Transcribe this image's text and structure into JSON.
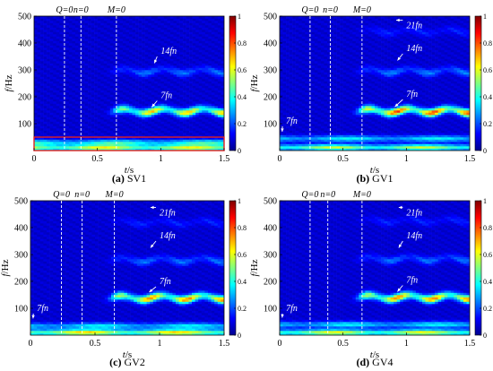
{
  "chart_data": [
    {
      "type": "heatmap",
      "caption_letter": "(a)",
      "caption_text": " SV1",
      "xlabel_main": "t",
      "xlabel_unit": "/s",
      "ylabel_main": "f",
      "ylabel_unit": "/Hz",
      "xlim": [
        0,
        1.5
      ],
      "ylim": [
        0,
        500
      ],
      "xticks": [
        "0",
        "0.5",
        "1",
        "1.5"
      ],
      "yticks": [
        "100",
        "200",
        "300",
        "400",
        "500"
      ],
      "colorbar": {
        "range": [
          0,
          1
        ],
        "ticks": [
          "0",
          "0.2",
          "0.4",
          "0.6",
          "0.8",
          "1"
        ]
      },
      "markers": [
        {
          "label": "Q=0",
          "t": 0.24
        },
        {
          "label": "n=0",
          "t": 0.37
        },
        {
          "label": "M=0",
          "t": 0.65
        }
      ],
      "annotations": [
        {
          "text": "14fn",
          "t": 1.0,
          "f": 360,
          "arrow_to": [
            0.95,
            325
          ]
        },
        {
          "text": "7fn",
          "t": 1.0,
          "f": 195,
          "arrow_to": [
            0.93,
            162
          ]
        }
      ],
      "highlight_box": {
        "t": [
          0,
          1.5
        ],
        "f": [
          0,
          50
        ]
      },
      "bands": [
        {
          "f": 148,
          "peak": 0.45
        },
        {
          "f": 296,
          "peak": 0.12
        },
        {
          "f": 30,
          "peak": 0.35
        },
        {
          "f": 10,
          "peak": 0.55
        }
      ]
    },
    {
      "type": "heatmap",
      "caption_letter": "(b)",
      "caption_text": " GV1",
      "xlabel_main": "t",
      "xlabel_unit": "/s",
      "ylabel_main": "f",
      "ylabel_unit": "/Hz",
      "xlim": [
        0,
        1.5
      ],
      "ylim": [
        0,
        500
      ],
      "xticks": [
        "0",
        "0.5",
        "1",
        "1.5"
      ],
      "yticks": [
        "100",
        "200",
        "300",
        "400",
        "500"
      ],
      "colorbar": {
        "range": [
          0,
          1
        ],
        "ticks": [
          "0",
          "0.2",
          "0.4",
          "0.6",
          "0.8",
          "1"
        ]
      },
      "markers": [
        {
          "label": "Q=0",
          "t": 0.24
        },
        {
          "label": "n=0",
          "t": 0.4
        },
        {
          "label": "M=0",
          "t": 0.65
        }
      ],
      "annotations": [
        {
          "text": "21fn",
          "t": 1.0,
          "f": 455,
          "arrow_to": [
            0.92,
            485
          ]
        },
        {
          "text": "14fn",
          "t": 1.0,
          "f": 370,
          "arrow_to": [
            0.93,
            335
          ]
        },
        {
          "text": "7fn",
          "t": 1.0,
          "f": 200,
          "arrow_to": [
            0.91,
            163
          ]
        },
        {
          "text": "7fn",
          "t": 0.05,
          "f": 100,
          "arrow_to": [
            0.02,
            70
          ]
        }
      ],
      "bands": [
        {
          "f": 148,
          "peak": 0.55
        },
        {
          "f": 296,
          "peak": 0.13
        },
        {
          "f": 444,
          "peak": 0.06
        },
        {
          "f": 45,
          "peak": 0.3
        },
        {
          "f": 12,
          "peak": 0.5
        }
      ]
    },
    {
      "type": "heatmap",
      "caption_letter": "(c)",
      "caption_text": " GV2",
      "xlabel_main": "t",
      "xlabel_unit": "/s",
      "ylabel_main": "f",
      "ylabel_unit": "/Hz",
      "xlim": [
        0,
        1.5
      ],
      "ylim": [
        0,
        500
      ],
      "xticks": [
        "0",
        "0.5",
        "1",
        "1.5"
      ],
      "yticks": [
        "100",
        "200",
        "300",
        "400",
        "500"
      ],
      "colorbar": {
        "range": [
          0,
          1
        ],
        "ticks": [
          "0",
          "0.2",
          "0.4",
          "0.6",
          "0.8",
          "1"
        ]
      },
      "markers": [
        {
          "label": "Q=0",
          "t": 0.24
        },
        {
          "label": "n=0",
          "t": 0.4
        },
        {
          "label": "M=0",
          "t": 0.65
        }
      ],
      "annotations": [
        {
          "text": "21fn",
          "t": 1.0,
          "f": 445,
          "arrow_to": [
            0.93,
            475
          ]
        },
        {
          "text": "14fn",
          "t": 1.0,
          "f": 360,
          "arrow_to": [
            0.93,
            325
          ]
        },
        {
          "text": "7fn",
          "t": 1.0,
          "f": 190,
          "arrow_to": [
            0.92,
            160
          ]
        },
        {
          "text": "7fn",
          "t": 0.05,
          "f": 90,
          "arrow_to": [
            0.02,
            62
          ]
        }
      ],
      "bands": [
        {
          "f": 140,
          "peak": 0.5
        },
        {
          "f": 280,
          "peak": 0.12
        },
        {
          "f": 420,
          "peak": 0.06
        },
        {
          "f": 35,
          "peak": 0.3
        },
        {
          "f": 10,
          "peak": 0.6
        }
      ]
    },
    {
      "type": "heatmap",
      "caption_letter": "(d)",
      "caption_text": " GV4",
      "xlabel_main": "t",
      "xlabel_unit": "/s",
      "ylabel_main": "f",
      "ylabel_unit": "/Hz",
      "xlim": [
        0,
        1.5
      ],
      "ylim": [
        0,
        500
      ],
      "xticks": [
        "0",
        "0.5",
        "1",
        "1.5"
      ],
      "yticks": [
        "100",
        "200",
        "300",
        "400",
        "500"
      ],
      "colorbar": {
        "range": [
          0,
          1
        ],
        "ticks": [
          "0",
          "0.2",
          "0.4",
          "0.6",
          "0.8",
          "1"
        ]
      },
      "markers": [
        {
          "label": "Q=0",
          "t": 0.24
        },
        {
          "label": "n=0",
          "t": 0.38
        },
        {
          "label": "M=0",
          "t": 0.65
        }
      ],
      "annotations": [
        {
          "text": "21fn",
          "t": 1.0,
          "f": 445,
          "arrow_to": [
            0.94,
            475
          ]
        },
        {
          "text": "14fn",
          "t": 1.0,
          "f": 360,
          "arrow_to": [
            0.94,
            325
          ]
        },
        {
          "text": "7fn",
          "t": 1.0,
          "f": 195,
          "arrow_to": [
            0.93,
            162
          ]
        },
        {
          "text": "7fn",
          "t": 0.05,
          "f": 90,
          "arrow_to": [
            0.02,
            65
          ]
        }
      ],
      "bands": [
        {
          "f": 142,
          "peak": 0.5
        },
        {
          "f": 284,
          "peak": 0.12
        },
        {
          "f": 426,
          "peak": 0.06
        },
        {
          "f": 40,
          "peak": 0.3
        },
        {
          "f": 10,
          "peak": 0.55
        }
      ]
    }
  ]
}
